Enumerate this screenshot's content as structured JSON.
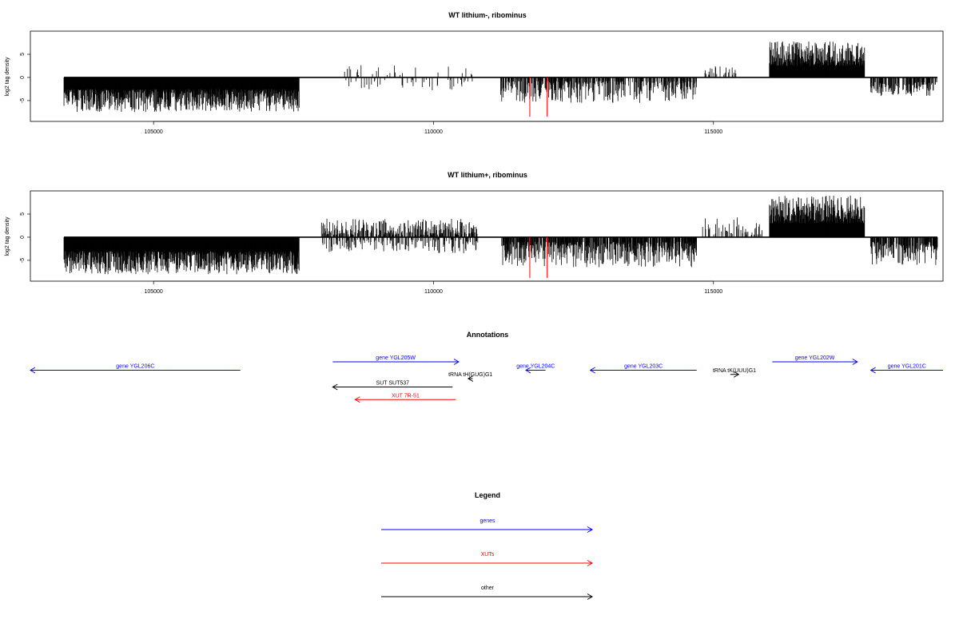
{
  "colors": {
    "genes": "#0000ff",
    "xuts": "#ff0000",
    "other": "#000000",
    "highlight": "#ff0000",
    "frame": "#000000"
  },
  "chart_data": [
    {
      "type": "bar",
      "title": "WT lithium-, ribominus",
      "ylabel": "log2 tag density",
      "xlim": [
        102800,
        119100
      ],
      "ylim": [
        -9.5,
        10
      ],
      "xticks": [
        105000,
        110000,
        115000
      ],
      "yticks": [
        -5,
        0,
        5
      ],
      "ytick_labels": [
        "-5",
        "0",
        "5"
      ],
      "xtick_labels": [
        "105000",
        "110000",
        "115000"
      ],
      "grid": false,
      "segments": [
        {
          "start": 103400,
          "end": 107600,
          "sign": -1,
          "min": 2.5,
          "max": 7.5,
          "density": 1.0
        },
        {
          "start": 108400,
          "end": 110700,
          "sign": 1,
          "min": 0.5,
          "max": 3.0,
          "density": 0.08
        },
        {
          "start": 108400,
          "end": 110700,
          "sign": -1,
          "min": 0.5,
          "max": 3.0,
          "density": 0.1
        },
        {
          "start": 111200,
          "end": 114700,
          "sign": -1,
          "min": 0.8,
          "max": 5.5,
          "density": 0.55
        },
        {
          "start": 114800,
          "end": 115400,
          "sign": 1,
          "min": 0.5,
          "max": 2.5,
          "density": 0.2
        },
        {
          "start": 116000,
          "end": 117700,
          "sign": 1,
          "min": 2.5,
          "max": 7.8,
          "density": 1.0
        },
        {
          "start": 117800,
          "end": 119000,
          "sign": -1,
          "min": 1.0,
          "max": 4.0,
          "density": 0.6
        }
      ],
      "highlight_bars": [
        {
          "x": 111720,
          "y": -8.5
        },
        {
          "x": 112030,
          "y": -8.5
        }
      ]
    },
    {
      "type": "bar",
      "title": "WT lithium+, ribominus",
      "ylabel": "log2 tag density",
      "xlim": [
        102800,
        119100
      ],
      "ylim": [
        -9.5,
        10
      ],
      "xticks": [
        105000,
        110000,
        115000
      ],
      "yticks": [
        -5,
        0,
        5
      ],
      "ytick_labels": [
        "-5",
        "0",
        "5"
      ],
      "xtick_labels": [
        "105000",
        "110000",
        "115000"
      ],
      "grid": false,
      "segments": [
        {
          "start": 103400,
          "end": 107600,
          "sign": -1,
          "min": 3.0,
          "max": 8.0,
          "density": 1.0
        },
        {
          "start": 108000,
          "end": 110800,
          "sign": 1,
          "min": 0.5,
          "max": 4.0,
          "density": 0.5
        },
        {
          "start": 108000,
          "end": 110800,
          "sign": -1,
          "min": 0.5,
          "max": 3.5,
          "density": 0.35
        },
        {
          "start": 111200,
          "end": 114700,
          "sign": -1,
          "min": 1.0,
          "max": 6.5,
          "density": 0.75
        },
        {
          "start": 114800,
          "end": 115900,
          "sign": 1,
          "min": 0.5,
          "max": 4.5,
          "density": 0.25
        },
        {
          "start": 116000,
          "end": 117700,
          "sign": 1,
          "min": 3.0,
          "max": 9.0,
          "density": 1.0
        },
        {
          "start": 117800,
          "end": 119000,
          "sign": -1,
          "min": 1.0,
          "max": 6.0,
          "density": 0.7
        }
      ],
      "highlight_bars": [
        {
          "x": 111720,
          "y": -8.8
        },
        {
          "x": 112030,
          "y": -8.8
        }
      ]
    }
  ],
  "annotations": {
    "title": "Annotations",
    "items": [
      {
        "label": "gene YGL206C",
        "start": 102800,
        "end": 106550,
        "strand": "-",
        "type": "gene",
        "row": 1
      },
      {
        "label": "gene YGL205W",
        "start": 108200,
        "end": 110450,
        "strand": "+",
        "type": "gene",
        "row": 0
      },
      {
        "label": "gene YGL204C",
        "start": 111650,
        "end": 112000,
        "strand": "-",
        "type": "gene",
        "row": 1
      },
      {
        "label": "gene YGL203C",
        "start": 112800,
        "end": 114700,
        "strand": "-",
        "type": "gene",
        "row": 1
      },
      {
        "label": "gene YGL202W",
        "start": 116050,
        "end": 117570,
        "strand": "+",
        "type": "gene",
        "row": 0
      },
      {
        "label": "gene YGL201C",
        "start": 117810,
        "end": 119100,
        "strand": "-",
        "type": "gene",
        "row": 1
      },
      {
        "label": "tRNA tH(GUG)G1",
        "start": 110620,
        "end": 110700,
        "strand": "-",
        "type": "other",
        "row": 2
      },
      {
        "label": "tRNA tK(UUU)G1",
        "start": 115300,
        "end": 115450,
        "strand": "+",
        "type": "other",
        "row": 1.5
      },
      {
        "label": "SUT SUT537",
        "start": 108200,
        "end": 110340,
        "strand": "-",
        "type": "other",
        "row": 3
      },
      {
        "label": "XUT 7R-51",
        "start": 108600,
        "end": 110400,
        "strand": "-",
        "type": "xut",
        "row": 4.5
      }
    ]
  },
  "legend": {
    "title": "Legend",
    "items": [
      {
        "label": "genes",
        "type": "gene"
      },
      {
        "label": "XUTs",
        "type": "xut"
      },
      {
        "label": "other",
        "type": "other"
      }
    ]
  }
}
